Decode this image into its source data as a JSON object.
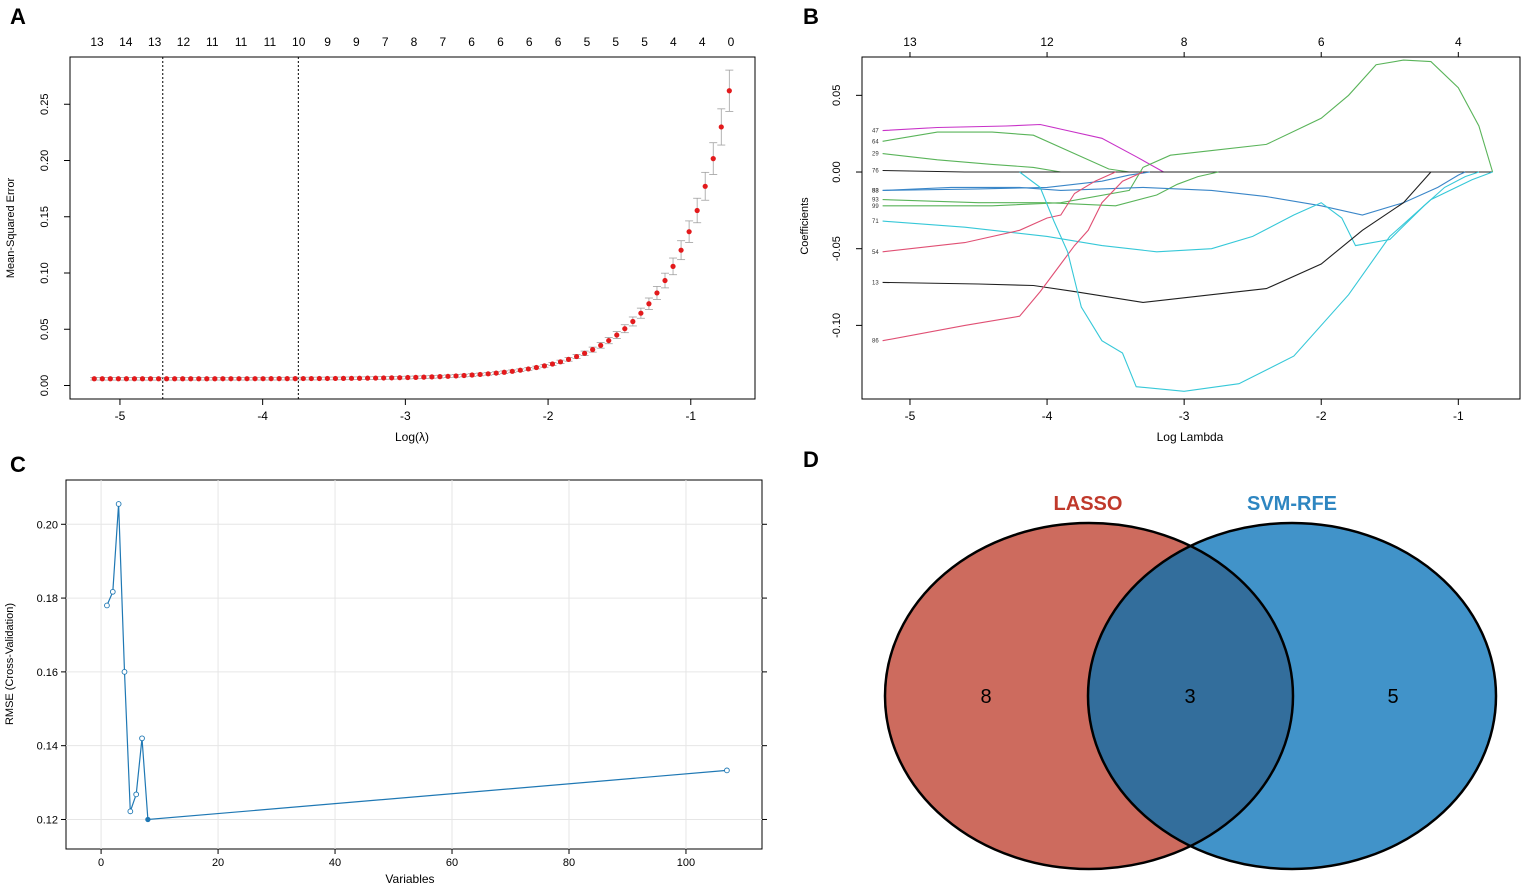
{
  "colors": {
    "cv_point": "#e31a1c",
    "error_bar": "#a0a0a0",
    "rfe_line": "#1f78b4",
    "lasso": "#cd6b5e",
    "svm": "#4193c9",
    "overlap": "#336e9c",
    "lasso_label": "#c0392b",
    "svm_label": "#2e86c1"
  },
  "chart_data": [
    {
      "panel": "A",
      "type": "scatter",
      "title": "",
      "xlabel": "Log(λ)",
      "ylabel": "Mean-Squared Error",
      "xlim": [
        -5.35,
        -0.55
      ],
      "ylim": [
        -0.012,
        0.292
      ],
      "xticks": [
        -5,
        -4,
        -3,
        -2,
        -1
      ],
      "yticks": [
        0.0,
        0.05,
        0.1,
        0.15,
        0.2,
        0.25
      ],
      "ytick_labels": [
        "0.00",
        "0.05",
        "0.10",
        "0.15",
        "0.20",
        "0.25"
      ],
      "top_axis_labels": [
        "13",
        "14",
        "13",
        "12",
        "11",
        "11",
        "11",
        "10",
        "9",
        "9",
        "7",
        "8",
        "7",
        "6",
        "6",
        "6",
        "6",
        "5",
        "5",
        "5",
        "4",
        "4",
        "0"
      ],
      "vlines": [
        -4.7,
        -3.75
      ],
      "curve": {
        "x_start": -5.18,
        "x_end": -0.73,
        "n": 80,
        "base": 0.006,
        "growth_rate": 1.25,
        "peak": 0.262,
        "se_fraction": 0.07
      }
    },
    {
      "panel": "B",
      "type": "line",
      "title": "",
      "xlabel": "Log Lambda",
      "ylabel": "Coefficients",
      "xlim": [
        -5.35,
        -0.55
      ],
      "ylim": [
        -0.148,
        0.075
      ],
      "xticks": [
        -5,
        -4,
        -3,
        -2,
        -1
      ],
      "yticks": [
        0.05,
        0.0,
        -0.05,
        -0.1
      ],
      "ytick_labels": [
        "0.05",
        "0.00",
        "-0.05",
        "-0.10"
      ],
      "top_axis_labels": [
        {
          "x": -5,
          "label": "13"
        },
        {
          "x": -4,
          "label": "12"
        },
        {
          "x": -3,
          "label": "8"
        },
        {
          "x": -2,
          "label": "6"
        },
        {
          "x": -1,
          "label": "4"
        }
      ],
      "series": [
        {
          "name": "47",
          "color": "#c832c8",
          "points": [
            [
              -5.2,
              0.027
            ],
            [
              -4.8,
              0.029
            ],
            [
              -4.3,
              0.03
            ],
            [
              -4.05,
              0.031
            ],
            [
              -3.9,
              0.028
            ],
            [
              -3.6,
              0.022
            ],
            [
              -3.35,
              0.01
            ],
            [
              -3.15,
              0
            ]
          ]
        },
        {
          "name": "64",
          "color": "#5ab45a",
          "points": [
            [
              -5.2,
              0.02
            ],
            [
              -4.8,
              0.026
            ],
            [
              -4.4,
              0.026
            ],
            [
              -4.1,
              0.024
            ],
            [
              -3.8,
              0.012
            ],
            [
              -3.55,
              0.002
            ],
            [
              -3.4,
              0
            ]
          ]
        },
        {
          "name": "29",
          "color": "#5ab45a",
          "points": [
            [
              -5.2,
              0.012
            ],
            [
              -4.8,
              0.008
            ],
            [
              -4.4,
              0.005
            ],
            [
              -4.1,
              0.003
            ],
            [
              -3.9,
              0
            ]
          ]
        },
        {
          "name": "76",
          "color": "#202020",
          "points": [
            [
              -5.2,
              0.001
            ],
            [
              -4.6,
              0.0
            ],
            [
              -3.0,
              0.0
            ],
            [
              -0.75,
              0.0
            ]
          ]
        },
        {
          "name": "93",
          "color": "#5ab45a",
          "points": [
            [
              -5.2,
              -0.018
            ],
            [
              -4.5,
              -0.02
            ],
            [
              -4.0,
              -0.02
            ],
            [
              -3.5,
              -0.022
            ],
            [
              -3.2,
              -0.015
            ],
            [
              -3.05,
              -0.008
            ],
            [
              -2.9,
              -0.003
            ],
            [
              -2.75,
              0
            ]
          ]
        },
        {
          "name": "83",
          "color": "#3a86c8",
          "points": [
            [
              -5.2,
              -0.012
            ],
            [
              -4.5,
              -0.011
            ],
            [
              -4.0,
              -0.01
            ],
            [
              -3.6,
              -0.006
            ],
            [
              -3.4,
              -0.002
            ],
            [
              -3.25,
              0
            ]
          ]
        },
        {
          "name": "99",
          "color": "#5ab45a",
          "points": [
            [
              -5.2,
              -0.022
            ],
            [
              -4.4,
              -0.022
            ],
            [
              -3.9,
              -0.02
            ],
            [
              -3.4,
              -0.012
            ],
            [
              -3.3,
              0.003
            ],
            [
              -3.1,
              0.011
            ],
            [
              -2.8,
              0.014
            ],
            [
              -2.4,
              0.018
            ],
            [
              -2.0,
              0.035
            ],
            [
              -1.8,
              0.05
            ],
            [
              -1.6,
              0.07
            ],
            [
              -1.4,
              0.073
            ],
            [
              -1.2,
              0.072
            ],
            [
              -1.0,
              0.055
            ],
            [
              -0.85,
              0.03
            ],
            [
              -0.75,
              0
            ]
          ]
        },
        {
          "name": "58",
          "color": "#3a86c8",
          "points": [
            [
              -5.2,
              -0.012
            ],
            [
              -4.7,
              -0.01
            ],
            [
              -4.2,
              -0.01
            ],
            [
              -3.9,
              -0.012
            ],
            [
              -3.6,
              -0.011
            ],
            [
              -3.3,
              -0.01
            ],
            [
              -2.8,
              -0.012
            ],
            [
              -2.4,
              -0.016
            ],
            [
              -2.0,
              -0.022
            ],
            [
              -1.7,
              -0.028
            ],
            [
              -1.4,
              -0.02
            ],
            [
              -1.15,
              -0.01
            ],
            [
              -1.0,
              -0.002
            ],
            [
              -0.95,
              0
            ]
          ]
        },
        {
          "name": "71",
          "color": "#36c8d8",
          "points": [
            [
              -5.2,
              -0.032
            ],
            [
              -4.6,
              -0.036
            ],
            [
              -4.0,
              -0.042
            ],
            [
              -3.6,
              -0.048
            ],
            [
              -3.2,
              -0.052
            ],
            [
              -2.8,
              -0.05
            ],
            [
              -2.5,
              -0.042
            ],
            [
              -2.2,
              -0.028
            ],
            [
              -2.0,
              -0.02
            ],
            [
              -1.85,
              -0.03
            ],
            [
              -1.75,
              -0.048
            ],
            [
              -1.5,
              -0.044
            ],
            [
              -1.25,
              -0.022
            ],
            [
              -1.1,
              -0.01
            ],
            [
              -0.95,
              -0.003
            ],
            [
              -0.85,
              0
            ]
          ]
        },
        {
          "name": "54",
          "color": "#e05074",
          "points": [
            [
              -5.2,
              -0.052
            ],
            [
              -4.6,
              -0.046
            ],
            [
              -4.2,
              -0.038
            ],
            [
              -4.0,
              -0.03
            ],
            [
              -3.9,
              -0.028
            ],
            [
              -3.8,
              -0.014
            ],
            [
              -3.65,
              -0.006
            ],
            [
              -3.5,
              0.0
            ]
          ]
        },
        {
          "name": "13",
          "color": "#202020",
          "points": [
            [
              -5.2,
              -0.072
            ],
            [
              -4.5,
              -0.073
            ],
            [
              -4.1,
              -0.074
            ],
            [
              -3.8,
              -0.078
            ],
            [
              -3.3,
              -0.085
            ],
            [
              -2.8,
              -0.08
            ],
            [
              -2.4,
              -0.076
            ],
            [
              -2.0,
              -0.06
            ],
            [
              -1.7,
              -0.038
            ],
            [
              -1.4,
              -0.02
            ],
            [
              -1.2,
              0.0
            ]
          ]
        },
        {
          "name": "86",
          "color": "#e05074",
          "points": [
            [
              -5.2,
              -0.11
            ],
            [
              -4.6,
              -0.1
            ],
            [
              -4.2,
              -0.094
            ],
            [
              -4.05,
              -0.078
            ],
            [
              -3.9,
              -0.06
            ],
            [
              -3.8,
              -0.048
            ],
            [
              -3.7,
              -0.038
            ],
            [
              -3.6,
              -0.02
            ],
            [
              -3.45,
              -0.006
            ],
            [
              -3.3,
              0.0
            ]
          ]
        },
        {
          "name": "",
          "color": "#36c8d8",
          "points": [
            [
              -4.2,
              0.0
            ],
            [
              -4.05,
              -0.01
            ],
            [
              -3.95,
              -0.032
            ],
            [
              -3.85,
              -0.052
            ],
            [
              -3.75,
              -0.088
            ],
            [
              -3.6,
              -0.11
            ],
            [
              -3.45,
              -0.118
            ],
            [
              -3.35,
              -0.14
            ],
            [
              -3.0,
              -0.143
            ],
            [
              -2.6,
              -0.138
            ],
            [
              -2.2,
              -0.12
            ],
            [
              -1.8,
              -0.08
            ],
            [
              -1.5,
              -0.042
            ],
            [
              -1.2,
              -0.018
            ],
            [
              -0.9,
              -0.005
            ],
            [
              -0.75,
              0.0
            ]
          ]
        }
      ]
    },
    {
      "panel": "C",
      "type": "line",
      "title": "",
      "xlabel": "Variables",
      "ylabel": "RMSE (Cross-Validation)",
      "xlim": [
        -6,
        113
      ],
      "ylim": [
        0.112,
        0.212
      ],
      "xticks": [
        0,
        20,
        40,
        60,
        80,
        100
      ],
      "yticks": [
        0.12,
        0.14,
        0.16,
        0.18,
        0.2
      ],
      "ytick_labels": [
        "0.12",
        "0.14",
        "0.16",
        "0.18",
        "0.20"
      ],
      "x": [
        1,
        2,
        3,
        4,
        5,
        6,
        7,
        8,
        107
      ],
      "y": [
        0.178,
        0.1817,
        0.2055,
        0.16,
        0.1222,
        0.1268,
        0.142,
        0.12,
        0.1333
      ]
    }
  ],
  "venn": {
    "panel": "D",
    "sets": [
      {
        "name": "LASSO",
        "only": "8"
      },
      {
        "name": "SVM-RFE",
        "only": "5"
      }
    ],
    "overlap": "3"
  },
  "panel_labels": [
    "A",
    "B",
    "C",
    "D"
  ]
}
